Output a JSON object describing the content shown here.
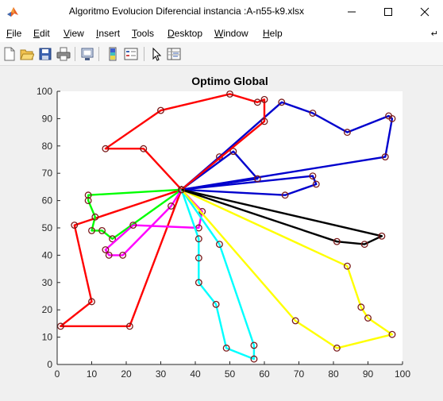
{
  "window": {
    "title": "Algoritmo Evolucion Diferencial instancia :A-n55-k9.xlsx",
    "app_icon": "matlab-figure-icon"
  },
  "menu": {
    "items": [
      "File",
      "Edit",
      "View",
      "Insert",
      "Tools",
      "Desktop",
      "Window",
      "Help"
    ],
    "overflow_icon": "dock-arrow-icon"
  },
  "toolbar": {
    "icons": [
      "new-figure-icon",
      "open-file-icon",
      "save-icon",
      "print-icon",
      "link-plot-icon",
      "insert-colorbar-icon",
      "insert-legend-icon",
      "edit-plot-icon",
      "property-inspector-icon"
    ]
  },
  "colors": {
    "axes_bg": "#ffffff",
    "figure_bg": "#f0f0f0"
  },
  "chart_data": {
    "type": "line",
    "title": "Optimo Global",
    "xlabel": "",
    "ylabel": "",
    "xlim": [
      0,
      100
    ],
    "ylim": [
      0,
      100
    ],
    "xticks": [
      "0",
      "10",
      "20",
      "30",
      "40",
      "50",
      "60",
      "70",
      "80",
      "90",
      "100"
    ],
    "yticks": [
      "0",
      "10",
      "20",
      "30",
      "40",
      "50",
      "60",
      "70",
      "80",
      "90",
      "100"
    ],
    "grid": false,
    "marker": "circle",
    "series": [
      {
        "color": "#0000cd",
        "points": [
          [
            36,
            64
          ],
          [
            66,
            62
          ],
          [
            75,
            66
          ],
          [
            74,
            69
          ],
          [
            36,
            64
          ]
        ]
      },
      {
        "color": "#0000cd",
        "points": [
          [
            36,
            64
          ],
          [
            95,
            76
          ],
          [
            97,
            90
          ],
          [
            96,
            91
          ],
          [
            84,
            85
          ],
          [
            74,
            92
          ],
          [
            65,
            96
          ],
          [
            47,
            76
          ],
          [
            36,
            64
          ]
        ]
      },
      {
        "color": "#0000cd",
        "points": [
          [
            36,
            64
          ],
          [
            58,
            68
          ],
          [
            51,
            78
          ],
          [
            36,
            64
          ]
        ]
      },
      {
        "color": "#ff0000",
        "points": [
          [
            36,
            64
          ],
          [
            60,
            89
          ],
          [
            60,
            97
          ],
          [
            58,
            96
          ],
          [
            50,
            99
          ],
          [
            30,
            93
          ],
          [
            14,
            79
          ],
          [
            25,
            79
          ],
          [
            36,
            64
          ]
        ]
      },
      {
        "color": "#ff0000",
        "points": [
          [
            36,
            64
          ],
          [
            5,
            51
          ],
          [
            10,
            23
          ],
          [
            1,
            14
          ],
          [
            21,
            14
          ],
          [
            36,
            64
          ]
        ]
      },
      {
        "color": "#00ff00",
        "points": [
          [
            36,
            64
          ],
          [
            9,
            62
          ],
          [
            9,
            60
          ],
          [
            11,
            54
          ],
          [
            10,
            49
          ],
          [
            13,
            49
          ],
          [
            16,
            46
          ],
          [
            36,
            64
          ]
        ]
      },
      {
        "color": "#ff00ff",
        "points": [
          [
            36,
            64
          ],
          [
            42,
            56
          ],
          [
            41,
            50
          ],
          [
            22,
            51
          ],
          [
            14,
            42
          ],
          [
            15,
            40
          ],
          [
            19,
            40
          ],
          [
            33,
            58
          ],
          [
            36,
            64
          ]
        ]
      },
      {
        "color": "#00ffff",
        "points": [
          [
            36,
            64
          ],
          [
            41,
            46
          ],
          [
            41,
            39
          ],
          [
            41,
            30
          ],
          [
            46,
            22
          ],
          [
            49,
            6
          ],
          [
            57,
            2
          ],
          [
            57,
            7
          ],
          [
            47,
            44
          ],
          [
            36,
            64
          ]
        ]
      },
      {
        "color": "#ffff00",
        "points": [
          [
            36,
            64
          ],
          [
            84,
            36
          ],
          [
            88,
            21
          ],
          [
            90,
            17
          ],
          [
            97,
            11
          ],
          [
            81,
            6
          ],
          [
            69,
            16
          ],
          [
            36,
            64
          ]
        ]
      },
      {
        "color": "#000000",
        "points": [
          [
            36,
            64
          ],
          [
            94,
            47
          ],
          [
            89,
            44
          ],
          [
            81,
            45
          ],
          [
            36,
            64
          ]
        ]
      }
    ]
  }
}
